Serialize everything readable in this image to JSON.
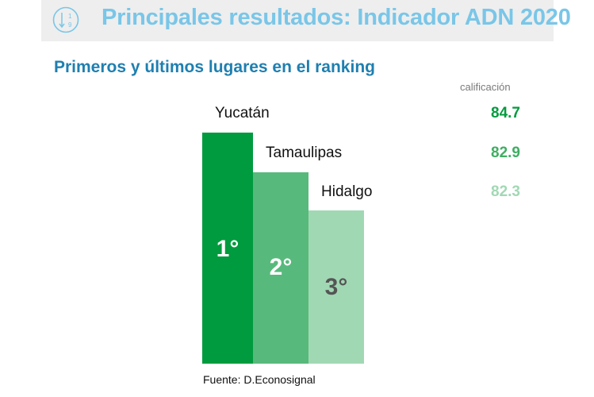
{
  "header": {
    "title": "Principales resultados: Indicador ADN 2020",
    "icon": "sort-numeric-icon"
  },
  "subtitle": "Primeros y últimos lugares en el ranking",
  "score_header": "calificación",
  "source": "Fuente: D.Econosignal",
  "colors": {
    "title": "#79c6e8",
    "subtitle": "#1f7fb0",
    "rank1": "#009b3e",
    "rank2": "#58b97c",
    "rank3": "#a1d8b4"
  },
  "chart_data": {
    "type": "bar",
    "categories": [
      "Yucatán",
      "Tamaulipas",
      "Hidalgo"
    ],
    "values": [
      84.7,
      82.9,
      82.3
    ],
    "value_labels": [
      "84.7",
      "82.9",
      "82.3"
    ],
    "ranks": [
      "1°",
      "2°",
      "3°"
    ],
    "bar_colors": [
      "#009b3e",
      "#58b97c",
      "#a1d8b4"
    ],
    "score_colors": [
      "#009b3e",
      "#3fae62",
      "#a1d8b4"
    ],
    "rank_text_colors": [
      "#ffffff",
      "#ffffff",
      "#555555"
    ],
    "title": "Primeros y últimos lugares en el ranking",
    "grid": false,
    "legend": "none"
  }
}
